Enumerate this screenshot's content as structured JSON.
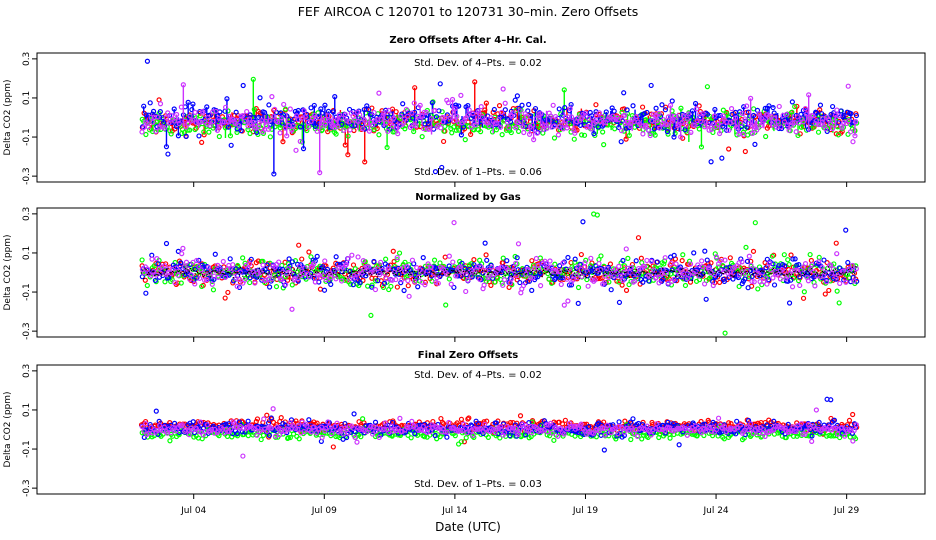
{
  "figure": {
    "title": "FEF   AIRCOA C   120701 to 120731   30–min. Zero Offsets",
    "xlabel": "Date (UTC)"
  },
  "chart_data": [
    {
      "type": "scatter",
      "title": "Zero Offsets After 4–Hr. Cal.",
      "ylabel": "Delta CO2 (ppm)",
      "ylim": [
        -0.33,
        0.33
      ],
      "yticks": [
        0.3,
        0.1,
        -0.1,
        -0.3
      ],
      "ytick_labels": [
        "0.3",
        "0.1",
        "-0.1",
        "-0.3"
      ],
      "xlim": [
        "2012-06-28",
        "2012-08-01"
      ],
      "xticks": [
        "Jul 04",
        "Jul 09",
        "Jul 14",
        "Jul 19",
        "Jul 24",
        "Jul 29"
      ],
      "annotations": [
        "Std. Dev. of 4–Pts. =  0.02",
        "Std. Dev. of 1–Pts. =  0.06"
      ],
      "series": [
        {
          "color": "#ff0000",
          "center": -0.02,
          "spread": 0.055
        },
        {
          "color": "#00ff00",
          "center": -0.035,
          "spread": 0.06
        },
        {
          "color": "#0000ff",
          "center": -0.005,
          "spread": 0.065
        },
        {
          "color": "#cc33ff",
          "center": -0.02,
          "spread": 0.06
        }
      ]
    },
    {
      "type": "scatter",
      "title": "Normalized by Gas",
      "ylabel": "Delta CO2 (ppm)",
      "ylim": [
        -0.33,
        0.33
      ],
      "yticks": [
        0.3,
        0.1,
        -0.1,
        -0.3
      ],
      "ytick_labels": [
        "0.3",
        "0.1",
        "-0.1",
        "-0.3"
      ],
      "xlim": [
        "2012-06-28",
        "2012-08-01"
      ],
      "xticks": [
        "Jul 04",
        "Jul 09",
        "Jul 14",
        "Jul 19",
        "Jul 24",
        "Jul 29"
      ],
      "annotations": [],
      "series": [
        {
          "color": "#ff0000",
          "center": 0.0,
          "spread": 0.06
        },
        {
          "color": "#00ff00",
          "center": 0.0,
          "spread": 0.06
        },
        {
          "color": "#0000ff",
          "center": 0.0,
          "spread": 0.065
        },
        {
          "color": "#cc33ff",
          "center": 0.0,
          "spread": 0.06
        }
      ]
    },
    {
      "type": "scatter",
      "title": "Final Zero Offsets",
      "ylabel": "Delta CO2 (ppm)",
      "ylim": [
        -0.33,
        0.33
      ],
      "yticks": [
        0.3,
        0.1,
        -0.1,
        -0.3
      ],
      "ytick_labels": [
        "0.3",
        "0.1",
        "-0.1",
        "-0.3"
      ],
      "xlim": [
        "2012-06-28",
        "2012-08-01"
      ],
      "xticks": [
        "Jul 04",
        "Jul 09",
        "Jul 14",
        "Jul 19",
        "Jul 24",
        "Jul 29"
      ],
      "annotations": [
        "Std. Dev. of 4–Pts. =  0.02",
        "Std. Dev. of 1–Pts. =  0.03"
      ],
      "series": [
        {
          "color": "#ff0000",
          "center": 0.02,
          "spread": 0.025
        },
        {
          "color": "#00ff00",
          "center": -0.02,
          "spread": 0.025
        },
        {
          "color": "#0000ff",
          "center": 0.005,
          "spread": 0.03
        },
        {
          "color": "#cc33ff",
          "center": 0.0,
          "spread": 0.025
        }
      ]
    }
  ]
}
